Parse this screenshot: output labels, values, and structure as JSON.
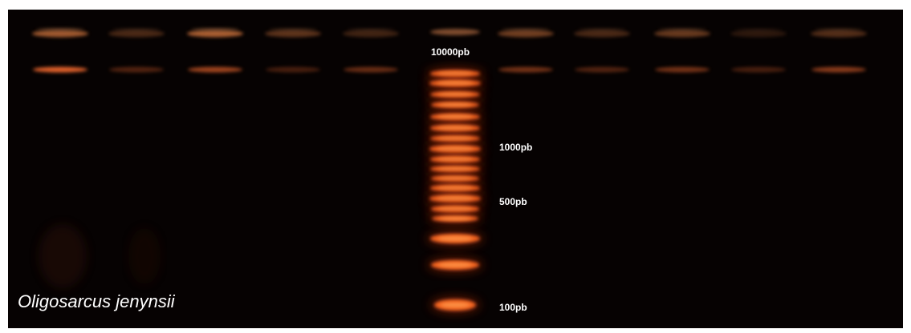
{
  "ladder_labels": [
    "10000pb",
    "1000pb",
    "500pb",
    "100pb"
  ],
  "species_label": "Oligosarcus jenynsii"
}
